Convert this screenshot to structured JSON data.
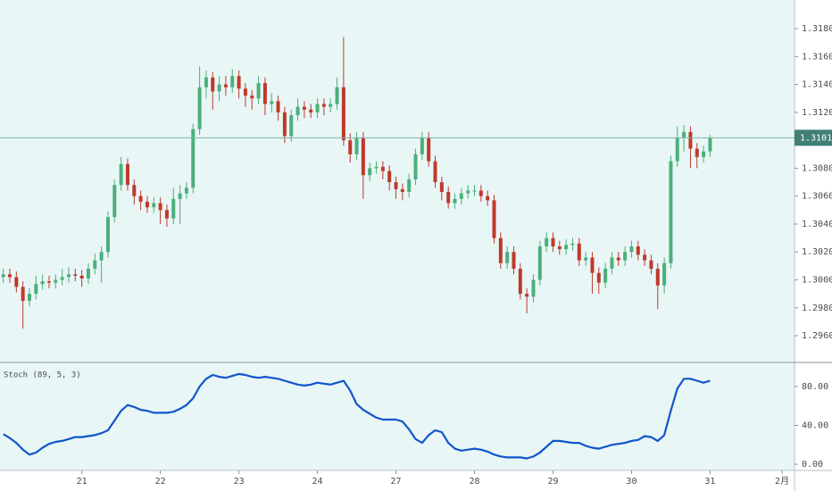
{
  "chart_data": {
    "type": "candlestick",
    "background": "#e8f6f6",
    "up_color": "#4caf7a",
    "down_color": "#c0392b",
    "xlim": [
      -0.5,
      120.9
    ],
    "xticks": [
      {
        "value": 12,
        "label": "21"
      },
      {
        "value": 24,
        "label": "22"
      },
      {
        "value": 36,
        "label": "23"
      },
      {
        "value": 48,
        "label": "24"
      },
      {
        "value": 60,
        "label": "27"
      },
      {
        "value": 72,
        "label": "28"
      },
      {
        "value": 84,
        "label": "29"
      },
      {
        "value": 96,
        "label": "30"
      },
      {
        "value": 108,
        "label": "31"
      },
      {
        "value": 119,
        "label": "2月"
      }
    ],
    "ylim": [
      1.29415,
      1.32005
    ],
    "yticks": [
      {
        "value": 1.296,
        "label": "1.29600"
      },
      {
        "value": 1.298,
        "label": "1.29800"
      },
      {
        "value": 1.3,
        "label": "1.30000"
      },
      {
        "value": 1.302,
        "label": "1.30200"
      },
      {
        "value": 1.304,
        "label": "1.30400"
      },
      {
        "value": 1.306,
        "label": "1.30600"
      },
      {
        "value": 1.308,
        "label": "1.30800"
      },
      {
        "value": 1.31,
        "label": "1.31000"
      },
      {
        "value": 1.312,
        "label": "1.31200"
      },
      {
        "value": 1.314,
        "label": "1.31400"
      },
      {
        "value": 1.316,
        "label": "1.31600"
      },
      {
        "value": 1.318,
        "label": "1.31800"
      }
    ],
    "last_price": {
      "value": 1.31018,
      "label": "1.31018"
    },
    "open": [
      1.3002,
      1.3004,
      1.3002,
      1.2995,
      1.2985,
      1.299,
      1.2997,
      1.2999,
      1.2998,
      1.3,
      1.3002,
      1.3004,
      1.3003,
      1.3001,
      1.3008,
      1.3014,
      1.302,
      1.3045,
      1.3068,
      1.3083,
      1.3068,
      1.306,
      1.3056,
      1.3052,
      1.3055,
      1.305,
      1.3044,
      1.3058,
      1.3062,
      1.3066,
      1.3108,
      1.3138,
      1.3145,
      1.3135,
      1.314,
      1.3138,
      1.3146,
      1.3137,
      1.3132,
      1.313,
      1.3141,
      1.3126,
      1.3128,
      1.312,
      1.3103,
      1.3118,
      1.3124,
      1.3122,
      1.312,
      1.3126,
      1.3124,
      1.3126,
      1.3138,
      1.31,
      1.309,
      1.3102,
      1.3075,
      1.308,
      1.3081,
      1.3078,
      1.307,
      1.3065,
      1.3063,
      1.3072,
      1.309,
      1.3102,
      1.3085,
      1.307,
      1.3063,
      1.3055,
      1.3058,
      1.3062,
      1.3064,
      1.3064,
      1.306,
      1.3057,
      1.303,
      1.3012,
      1.302,
      1.3008,
      1.299,
      1.2988,
      1.3,
      1.3024,
      1.303,
      1.3024,
      1.3022,
      1.3025,
      1.3026,
      1.3014,
      1.3016,
      1.3005,
      1.2998,
      1.3008,
      1.3016,
      1.3014,
      1.302,
      1.3024,
      1.3018,
      1.3014,
      1.3008,
      1.2996,
      1.3012,
      1.3085,
      1.3102,
      1.3106,
      1.3094,
      1.3088,
      1.3092
    ],
    "high": [
      1.3008,
      1.3008,
      1.3006,
      1.2999,
      1.2994,
      1.3003,
      1.3004,
      1.3003,
      1.3004,
      1.3008,
      1.3009,
      1.3008,
      1.3007,
      1.3012,
      1.3019,
      1.3024,
      1.3049,
      1.3072,
      1.3088,
      1.3087,
      1.3072,
      1.3064,
      1.306,
      1.3059,
      1.3059,
      1.3054,
      1.3066,
      1.3068,
      1.307,
      1.3112,
      1.3153,
      1.315,
      1.3149,
      1.3146,
      1.3146,
      1.3151,
      1.315,
      1.3141,
      1.3136,
      1.3146,
      1.3145,
      1.3134,
      1.3132,
      1.3124,
      1.3122,
      1.313,
      1.3128,
      1.3126,
      1.313,
      1.313,
      1.313,
      1.3145,
      1.3174,
      1.3105,
      1.3106,
      1.3106,
      1.3084,
      1.3085,
      1.3085,
      1.3082,
      1.3074,
      1.3069,
      1.3076,
      1.3094,
      1.3106,
      1.3106,
      1.3089,
      1.3074,
      1.3067,
      1.3062,
      1.3066,
      1.3068,
      1.3068,
      1.3068,
      1.3064,
      1.3061,
      1.3034,
      1.3024,
      1.3024,
      1.3012,
      1.2994,
      1.3004,
      1.3028,
      1.3034,
      1.3034,
      1.3028,
      1.3029,
      1.303,
      1.303,
      1.302,
      1.302,
      1.3009,
      1.3012,
      1.302,
      1.302,
      1.3024,
      1.3028,
      1.3028,
      1.3022,
      1.3018,
      1.3012,
      1.3016,
      1.3089,
      1.311,
      1.3111,
      1.311,
      1.3098,
      1.3096,
      1.3104
    ],
    "low": [
      1.2998,
      1.2998,
      1.2991,
      1.2965,
      1.2981,
      1.2986,
      1.2993,
      1.2994,
      1.2994,
      1.2996,
      1.2998,
      1.2999,
      1.2995,
      1.2997,
      1.3004,
      1.2998,
      1.3016,
      1.3041,
      1.3064,
      1.3064,
      1.3054,
      1.305,
      1.3048,
      1.3048,
      1.304,
      1.3038,
      1.304,
      1.304,
      1.3058,
      1.3062,
      1.3104,
      1.313,
      1.3122,
      1.3128,
      1.3132,
      1.3134,
      1.313,
      1.3124,
      1.3122,
      1.3126,
      1.3118,
      1.312,
      1.3114,
      1.3098,
      1.3099,
      1.3114,
      1.3116,
      1.3116,
      1.3116,
      1.3118,
      1.312,
      1.3122,
      1.3096,
      1.3084,
      1.3086,
      1.3058,
      1.3071,
      1.3076,
      1.3072,
      1.3064,
      1.3058,
      1.3057,
      1.3059,
      1.3068,
      1.3086,
      1.3081,
      1.3066,
      1.3057,
      1.3051,
      1.3051,
      1.3054,
      1.3058,
      1.306,
      1.3056,
      1.3053,
      1.3026,
      1.3008,
      1.3008,
      1.3004,
      1.2986,
      1.2976,
      1.2984,
      1.2996,
      1.302,
      1.302,
      1.3018,
      1.3018,
      1.3021,
      1.301,
      1.301,
      1.299,
      1.299,
      1.2994,
      1.3004,
      1.301,
      1.301,
      1.3016,
      1.3014,
      1.301,
      1.3004,
      1.2979,
      1.299,
      1.3008,
      1.3081,
      1.3092,
      1.308,
      1.308,
      1.3084,
      1.3088
    ],
    "close": [
      1.3004,
      1.3002,
      1.2995,
      1.2985,
      1.299,
      1.2997,
      1.2999,
      1.2998,
      1.3,
      1.3002,
      1.3004,
      1.3003,
      1.3001,
      1.3008,
      1.3014,
      1.302,
      1.3045,
      1.3068,
      1.3083,
      1.3068,
      1.306,
      1.3056,
      1.3052,
      1.3055,
      1.305,
      1.3044,
      1.3058,
      1.3062,
      1.3066,
      1.3108,
      1.3138,
      1.3145,
      1.3135,
      1.314,
      1.3138,
      1.3146,
      1.3137,
      1.3132,
      1.313,
      1.3141,
      1.3126,
      1.3128,
      1.312,
      1.3103,
      1.3118,
      1.3124,
      1.3122,
      1.312,
      1.3126,
      1.3124,
      1.3126,
      1.3138,
      1.31,
      1.309,
      1.3102,
      1.3075,
      1.308,
      1.3081,
      1.3078,
      1.307,
      1.3065,
      1.3063,
      1.3072,
      1.309,
      1.3102,
      1.3085,
      1.307,
      1.3063,
      1.3055,
      1.3058,
      1.3062,
      1.3064,
      1.3064,
      1.306,
      1.3057,
      1.303,
      1.3012,
      1.302,
      1.3008,
      1.299,
      1.2988,
      1.3,
      1.3024,
      1.303,
      1.3024,
      1.3022,
      1.3025,
      1.3026,
      1.3014,
      1.3016,
      1.3005,
      1.2998,
      1.3008,
      1.3016,
      1.3014,
      1.302,
      1.3024,
      1.3018,
      1.3014,
      1.3008,
      1.2996,
      1.3012,
      1.3085,
      1.3102,
      1.3106,
      1.3094,
      1.3088,
      1.3092,
      1.31018
    ],
    "indicator": {
      "type": "line",
      "name": "Stoch (89, 5, 3)",
      "color": "#1155cc",
      "ylim": [
        -6.4,
        103
      ],
      "yticks": [
        {
          "value": 0,
          "label": "0.00"
        },
        {
          "value": 40,
          "label": "40.00"
        },
        {
          "value": 80,
          "label": "80.00"
        }
      ],
      "values": [
        31,
        27,
        22,
        15,
        10,
        12,
        17,
        21,
        23,
        24,
        26,
        28,
        28,
        29,
        30,
        32,
        35,
        45,
        55,
        61,
        59,
        56,
        55,
        53,
        53,
        53,
        54,
        57,
        61,
        68,
        80,
        88,
        92,
        90,
        89,
        91,
        93,
        92,
        90,
        89,
        90,
        89,
        88,
        86,
        84,
        82,
        81,
        82,
        84,
        83,
        82,
        84,
        86,
        76,
        62,
        56,
        52,
        48,
        46,
        46,
        46,
        44,
        36,
        26,
        22,
        30,
        35,
        33,
        22,
        16,
        14,
        15,
        16,
        15,
        13,
        10,
        8,
        7,
        7,
        7,
        6,
        8,
        12,
        18,
        24,
        24,
        23,
        22,
        22,
        19,
        17,
        16,
        18,
        20,
        21,
        22,
        24,
        25,
        29,
        28,
        24,
        30,
        55,
        78,
        88,
        88,
        86,
        84,
        86
      ]
    }
  }
}
